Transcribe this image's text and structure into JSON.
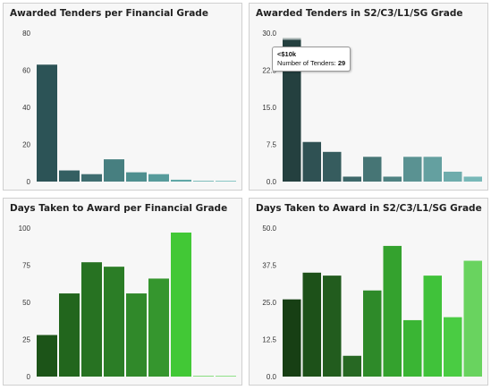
{
  "chart_data": [
    {
      "type": "bar",
      "title": "Awarded Tenders per Financial Grade",
      "ylim": [
        0,
        80
      ],
      "yticks": [
        0,
        20,
        40,
        60,
        80
      ],
      "tick_labels": [
        "0",
        "20",
        "40",
        "60",
        "80"
      ],
      "values": [
        63,
        6,
        4,
        12,
        5,
        4,
        1,
        0.4,
        0.4
      ],
      "colors": [
        "#2c5356",
        "#345f62",
        "#3f6d70",
        "#477f80",
        "#4f8f8f",
        "#579b9b",
        "#60a7a6",
        "#69b2b1",
        "#72bcbb"
      ]
    },
    {
      "type": "bar",
      "title": "Awarded Tenders in S2/C3/L1/SG Grade",
      "ylim": [
        0,
        30
      ],
      "yticks": [
        0,
        7.5,
        15,
        22.5,
        30
      ],
      "tick_labels": [
        "0.0",
        "7.5",
        "15.0",
        "22.5",
        "30.0"
      ],
      "values": [
        29,
        8,
        6,
        1,
        5,
        1,
        5,
        5,
        2,
        1
      ],
      "colors": [
        "#24403f",
        "#2f5153",
        "#365c5e",
        "#3e686a",
        "#467575",
        "#4f8282",
        "#5a9292",
        "#64a0a0",
        "#6eacac",
        "#78b8b8"
      ],
      "tooltip": {
        "title": "<$10k",
        "label": "Number of Tenders:",
        "value": "29",
        "bar_index": 0
      }
    },
    {
      "type": "bar",
      "title": "Days Taken to Award per Financial Grade",
      "ylim": [
        0,
        100
      ],
      "yticks": [
        0,
        25,
        50,
        75,
        100
      ],
      "tick_labels": [
        "0",
        "25",
        "50",
        "75",
        "100"
      ],
      "values": [
        28,
        56,
        77,
        74,
        56,
        66,
        97,
        0.4,
        0.4
      ],
      "colors": [
        "#1c5418",
        "#22661d",
        "#277222",
        "#2b7d26",
        "#30892a",
        "#35962e",
        "#42c836",
        "#4fd043",
        "#5cd650"
      ]
    },
    {
      "type": "bar",
      "title": "Days Taken to Award in S2/C3/L1/SG Grade",
      "ylim": [
        0,
        50
      ],
      "yticks": [
        0,
        12.5,
        25,
        37.5,
        50
      ],
      "tick_labels": [
        "0.0",
        "12.5",
        "25.0",
        "37.5",
        "50.0"
      ],
      "values": [
        26,
        35,
        34,
        7,
        29,
        44,
        19,
        34,
        20,
        39
      ],
      "colors": [
        "#173f14",
        "#1d5119",
        "#225c1e",
        "#276823",
        "#2e8a29",
        "#34a22e",
        "#3ab534",
        "#40c23a",
        "#4acc43",
        "#69d35f"
      ]
    }
  ]
}
